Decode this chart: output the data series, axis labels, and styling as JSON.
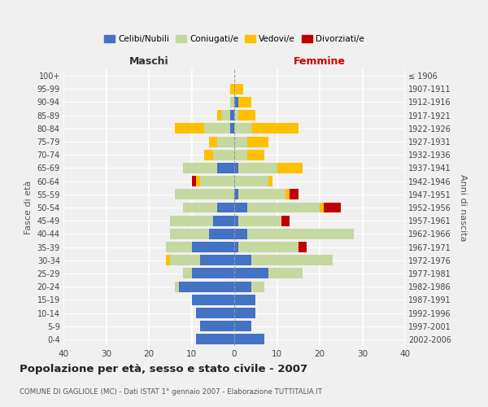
{
  "age_groups": [
    "0-4",
    "5-9",
    "10-14",
    "15-19",
    "20-24",
    "25-29",
    "30-34",
    "35-39",
    "40-44",
    "45-49",
    "50-54",
    "55-59",
    "60-64",
    "65-69",
    "70-74",
    "75-79",
    "80-84",
    "85-89",
    "90-94",
    "95-99",
    "100+"
  ],
  "birth_years": [
    "2002-2006",
    "1997-2001",
    "1992-1996",
    "1987-1991",
    "1982-1986",
    "1977-1981",
    "1972-1976",
    "1967-1971",
    "1962-1966",
    "1957-1961",
    "1952-1956",
    "1947-1951",
    "1942-1946",
    "1937-1941",
    "1932-1936",
    "1927-1931",
    "1922-1926",
    "1917-1921",
    "1912-1916",
    "1907-1911",
    "≤ 1906"
  ],
  "maschi": {
    "celibi": [
      9,
      8,
      9,
      10,
      13,
      10,
      8,
      10,
      6,
      5,
      4,
      0,
      0,
      4,
      0,
      0,
      1,
      1,
      0,
      0,
      0
    ],
    "coniugati": [
      0,
      0,
      0,
      0,
      1,
      2,
      7,
      6,
      9,
      10,
      8,
      14,
      8,
      8,
      5,
      4,
      6,
      2,
      1,
      0,
      0
    ],
    "vedovi": [
      0,
      0,
      0,
      0,
      0,
      0,
      1,
      0,
      0,
      0,
      0,
      0,
      1,
      0,
      2,
      2,
      7,
      1,
      0,
      1,
      0
    ],
    "divorziati": [
      0,
      0,
      0,
      0,
      0,
      0,
      0,
      0,
      0,
      0,
      0,
      0,
      1,
      0,
      0,
      0,
      0,
      0,
      0,
      0,
      0
    ]
  },
  "femmine": {
    "nubili": [
      7,
      4,
      5,
      5,
      4,
      8,
      4,
      1,
      3,
      1,
      3,
      1,
      0,
      1,
      0,
      0,
      0,
      0,
      1,
      0,
      0
    ],
    "coniugate": [
      0,
      0,
      0,
      0,
      3,
      8,
      19,
      14,
      25,
      10,
      17,
      11,
      8,
      9,
      3,
      3,
      4,
      1,
      0,
      0,
      0
    ],
    "vedove": [
      0,
      0,
      0,
      0,
      0,
      0,
      0,
      0,
      0,
      0,
      1,
      1,
      1,
      6,
      4,
      5,
      11,
      4,
      3,
      2,
      0
    ],
    "divorziate": [
      0,
      0,
      0,
      0,
      0,
      0,
      0,
      2,
      0,
      2,
      4,
      2,
      0,
      0,
      0,
      0,
      0,
      0,
      0,
      0,
      0
    ]
  },
  "colors": {
    "celibi_nubili": "#4472c4",
    "coniugati": "#c5d8a0",
    "vedovi": "#ffc000",
    "divorziati": "#c00000"
  },
  "xlim": 40,
  "title": "Popolazione per età, sesso e stato civile - 2007",
  "subtitle": "COMUNE DI GAGLIOLE (MC) - Dati ISTAT 1° gennaio 2007 - Elaborazione TUTTITALIA.IT",
  "ylabel_left": "Fasce di età",
  "ylabel_right": "Anni di nascita",
  "xlabel_maschi": "Maschi",
  "xlabel_femmine": "Femmine",
  "legend_labels": [
    "Celibi/Nubili",
    "Coniugati/e",
    "Vedovi/e",
    "Divorziati/e"
  ],
  "bg_color": "#f0f0f0",
  "grid_color": "#ffffff"
}
